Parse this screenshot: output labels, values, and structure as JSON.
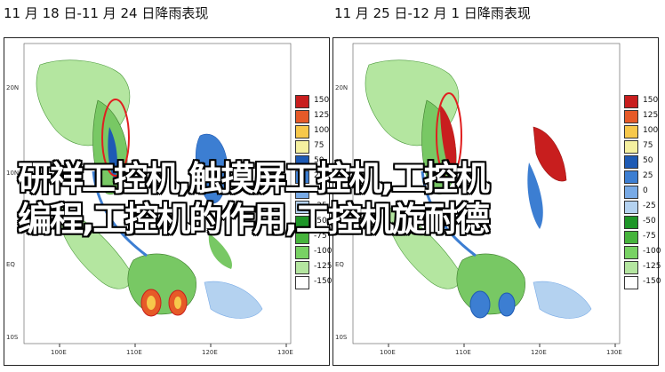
{
  "titles": {
    "left": "11 月 18 日-11 月 24 日降雨表现",
    "right": "11 月 25 日-12 月 1 日降雨表现"
  },
  "axes": {
    "lat": [
      "20N",
      "10N",
      "EQ",
      "10S"
    ],
    "lon": [
      "100E",
      "110E",
      "120E",
      "130E"
    ]
  },
  "legend": {
    "values": [
      "150",
      "125",
      "100",
      "75",
      "50",
      "25",
      "0",
      "-25",
      "-50",
      "-75",
      "-100",
      "-125",
      "-150"
    ],
    "colors": [
      "#c81e1e",
      "#e65a28",
      "#f7c84b",
      "#f5f0a0",
      "#1e5ab4",
      "#3c7ed2",
      "#78aae6",
      "#b4d2f0",
      "#1e9628",
      "#46b43c",
      "#78d264",
      "#b4e6a0",
      "#ffffff"
    ]
  },
  "overlay": {
    "line1": "研祥工控机,触摸屏工控机,工控机",
    "line2": "编程,工控机的作用,工控机旋耐德"
  },
  "colors": {
    "land_green": "#78c864",
    "light_green": "#b4e6a0",
    "dry_blue": "#3c7ed2",
    "wet_red": "#c81e1e",
    "highlight_circle": "#e02020"
  }
}
